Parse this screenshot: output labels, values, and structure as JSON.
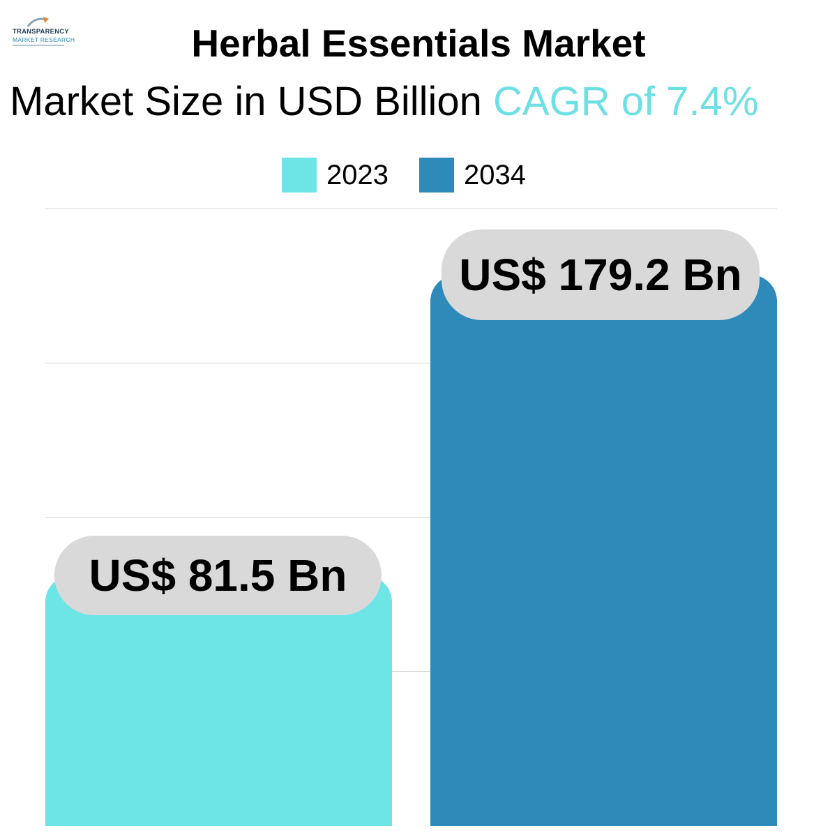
{
  "logo": {
    "line1": "TRANSPARENCY",
    "line2": "MARKET RESEARCH"
  },
  "title": "Herbal Essentials Market",
  "subtitle": {
    "text": "Market Size in USD Billion",
    "cagr": "CAGR of 7.4%"
  },
  "colors": {
    "series_2023": "#6de4e6",
    "series_2034": "#2e8ab8",
    "label_bg": "#d9d9d9",
    "cagr_accent": "#6ee0e5"
  },
  "chart_data": {
    "type": "bar",
    "title": "Herbal Essentials Market",
    "subtitle": "Market Size in USD Billion CAGR of 7.4%",
    "categories": [
      "2023",
      "2034"
    ],
    "values": [
      81.5,
      179.2
    ],
    "data_labels": [
      "US$ 81.5 Bn",
      "US$ 179.2 Bn"
    ],
    "legend": [
      "2023",
      "2034"
    ],
    "legend_position": "top",
    "ylabel": "",
    "xlabel": "",
    "grid": true,
    "axis_visible": false
  }
}
